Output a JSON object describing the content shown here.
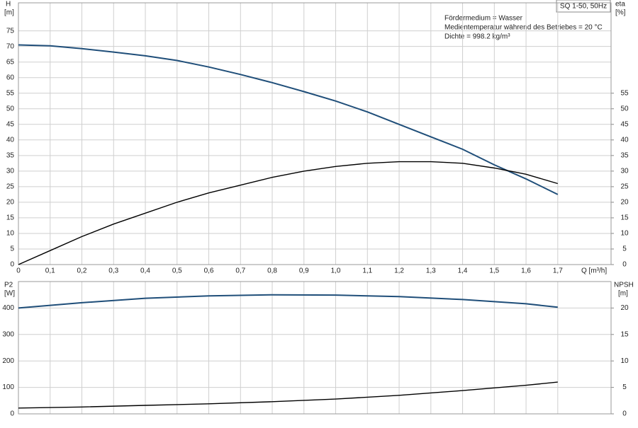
{
  "chart_data": [
    {
      "type": "line",
      "title": "SQ 1-50, 50Hz",
      "annotations": [
        "Fördermedium = Wasser",
        "Medientemperatur während des Betriebes = 20 °C",
        "Dichte = 998.2 kg/m³"
      ],
      "xlabel": "Q [m³/h]",
      "ylabel": "H",
      "ylabel_unit": "[m]",
      "y2label": "eta",
      "y2label_unit": "[%]",
      "grid": true,
      "x": [
        0,
        0.1,
        0.2,
        0.3,
        0.4,
        0.5,
        0.6,
        0.7,
        0.8,
        0.9,
        1.0,
        1.1,
        1.2,
        1.3,
        1.4,
        1.5,
        1.6,
        1.7
      ],
      "xlim": [
        0,
        1.868
      ],
      "xticks": [
        0,
        {
          "value": 0.1,
          "label": "0,1"
        },
        {
          "value": 0.2,
          "label": "0,2"
        },
        {
          "value": 0.3,
          "label": "0,3"
        },
        {
          "value": 0.4,
          "label": "0,4"
        },
        {
          "value": 0.5,
          "label": "0,5"
        },
        {
          "value": 0.6,
          "label": "0,6"
        },
        {
          "value": 0.7,
          "label": "0,7"
        },
        {
          "value": 0.8,
          "label": "0,8"
        },
        {
          "value": 0.9,
          "label": "0,9"
        },
        {
          "value": 1.0,
          "label": "1,0"
        },
        {
          "value": 1.1,
          "label": "1,1"
        },
        {
          "value": 1.2,
          "label": "1,2"
        },
        {
          "value": 1.3,
          "label": "1,3"
        },
        {
          "value": 1.4,
          "label": "1,4"
        },
        {
          "value": 1.5,
          "label": "1,5"
        },
        {
          "value": 1.6,
          "label": "1,6"
        },
        {
          "value": 1.7,
          "label": "1,7"
        }
      ],
      "ylim": [
        0,
        84
      ],
      "yticks": [
        0,
        5,
        10,
        15,
        20,
        25,
        30,
        35,
        40,
        45,
        50,
        55,
        60,
        65,
        70,
        75
      ],
      "y2lim": [
        0,
        84
      ],
      "y2ticks": [
        0,
        5,
        10,
        15,
        20,
        25,
        30,
        35,
        40,
        45,
        50,
        55
      ],
      "series": [
        {
          "name": "H",
          "color": "#1f4e79",
          "values": [
            70.5,
            70.2,
            69.3,
            68.2,
            67,
            65.5,
            63.4,
            61,
            58.4,
            55.5,
            52.5,
            49,
            45,
            41,
            37,
            32,
            27.5,
            22.5
          ]
        },
        {
          "name": "eta",
          "color": "#000000",
          "axis": "y2",
          "values": [
            0,
            4.5,
            9,
            13,
            16.5,
            20,
            23,
            25.5,
            28,
            30,
            31.5,
            32.5,
            33,
            33,
            32.5,
            31,
            29,
            26
          ]
        }
      ]
    },
    {
      "type": "line",
      "ylabel": "P2",
      "ylabel_unit": "[W]",
      "y2label": "NPSH",
      "y2label_unit": "[m]",
      "grid": true,
      "x": [
        0,
        0.2,
        0.4,
        0.6,
        0.8,
        1.0,
        1.2,
        1.4,
        1.6,
        1.7
      ],
      "xlim": [
        0,
        1.868
      ],
      "ylim": [
        0,
        500
      ],
      "yticks": [
        0,
        100,
        200,
        300,
        400
      ],
      "y2lim": [
        0,
        25
      ],
      "y2ticks": [
        0,
        5,
        10,
        15,
        20
      ],
      "series": [
        {
          "name": "P2",
          "color": "#1f4e79",
          "values": [
            400,
            420,
            437,
            446,
            450,
            449,
            443,
            432,
            416,
            403
          ]
        },
        {
          "name": "NPSH",
          "color": "#000000",
          "axis": "y2",
          "values": [
            1.1,
            1.3,
            1.6,
            1.9,
            2.3,
            2.8,
            3.5,
            4.4,
            5.4,
            6.0
          ]
        }
      ]
    }
  ]
}
